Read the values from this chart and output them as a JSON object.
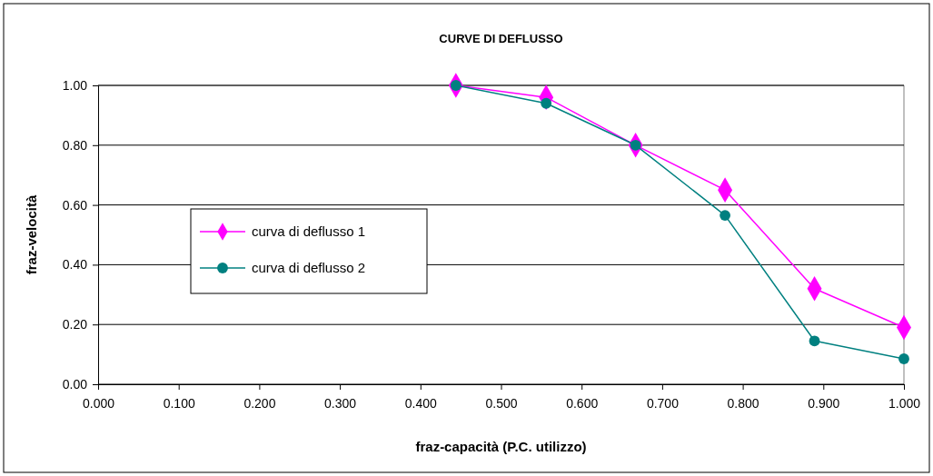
{
  "chart_data": {
    "type": "line",
    "title": "CURVE DI DEFLUSSO",
    "xlabel": "fraz-capacità (P.C. utilizzo)",
    "ylabel": "fraz-velocità",
    "x": [
      0.444,
      0.556,
      0.667,
      0.778,
      0.889,
      1.0
    ],
    "series": [
      {
        "name": "curva di deflusso 1",
        "color": "#ff00ff",
        "marker": "diamond",
        "values": [
          1.0,
          0.96,
          0.8,
          0.65,
          0.32,
          0.19
        ]
      },
      {
        "name": "curva di deflusso 2",
        "color": "#008080",
        "marker": "circle",
        "values": [
          1.0,
          0.94,
          0.8,
          0.565,
          0.145,
          0.085
        ]
      }
    ],
    "xlim": [
      0,
      1
    ],
    "xticks": [
      {
        "value": 0,
        "label": "0.000"
      },
      {
        "value": 0.1,
        "label": "0.100"
      },
      {
        "value": 0.2,
        "label": "0.200"
      },
      {
        "value": 0.3,
        "label": "0.300"
      },
      {
        "value": 0.4,
        "label": "0.400"
      },
      {
        "value": 0.5,
        "label": "0.500"
      },
      {
        "value": 0.6,
        "label": "0.600"
      },
      {
        "value": 0.7,
        "label": "0.700"
      },
      {
        "value": 0.8,
        "label": "0.800"
      },
      {
        "value": 0.9,
        "label": "0.900"
      },
      {
        "value": 1,
        "label": "1.000"
      }
    ],
    "ylim": [
      0,
      1
    ],
    "yticks": [
      {
        "value": 0,
        "label": "0.00"
      },
      {
        "value": 0.2,
        "label": "0.20"
      },
      {
        "value": 0.4,
        "label": "0.40"
      },
      {
        "value": 0.6,
        "label": "0.60"
      },
      {
        "value": 0.8,
        "label": "0.80"
      },
      {
        "value": 1,
        "label": "1.00"
      }
    ],
    "grid": "y",
    "legend": "left"
  }
}
